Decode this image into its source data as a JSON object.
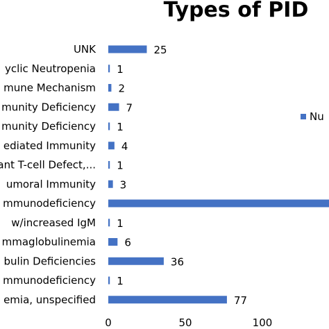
{
  "chart_data": {
    "type": "bar",
    "orientation": "horizontal",
    "title": "Types of PID",
    "categories": [
      "UNK",
      "yclic Neutropenia",
      "mune Mechanism",
      "munity Deficiency",
      "munity Deficiency",
      "ediated Immunity",
      "nant T-cell Defect,...",
      "umoral Immunity",
      "mmunodeficiency",
      "w/increased IgM",
      "mmaglobulinemia",
      "bulin Deficiencies",
      "mmunodeficiency",
      "emia, unspecified"
    ],
    "series": [
      {
        "name": "Nu",
        "values": [
          25,
          1,
          2,
          7,
          1,
          4,
          1,
          3,
          150,
          1,
          6,
          36,
          1,
          77
        ],
        "data_labels": [
          "25",
          "1",
          "2",
          "7",
          "1",
          "4",
          "1",
          "3",
          "",
          "1",
          "6",
          "36",
          "1",
          "77"
        ]
      }
    ],
    "xlim": [
      0,
      150
    ],
    "x_ticks": [
      "0",
      "50",
      "100"
    ],
    "x_tick_values": [
      0,
      50,
      100
    ],
    "grid": false,
    "legend_position": "right",
    "bar_color": "#4472C4"
  }
}
